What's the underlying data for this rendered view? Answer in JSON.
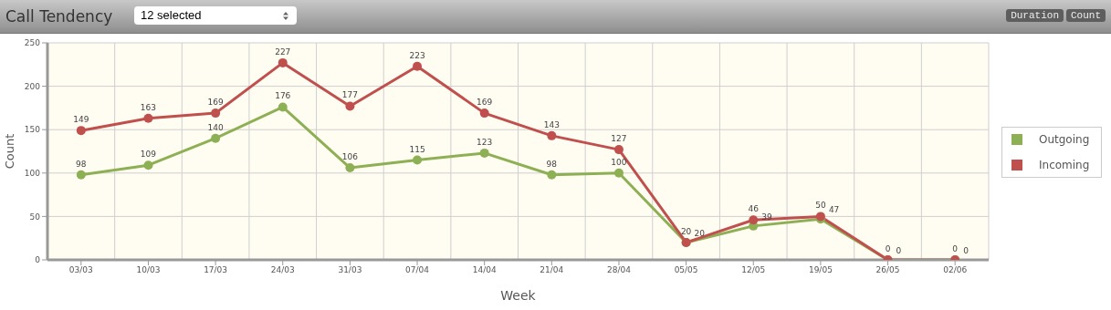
{
  "chart_data": {
    "type": "line",
    "title": "Call Tendency",
    "xlabel": "Week",
    "ylabel": "Count",
    "annotations": [
      "12 selected",
      "Duration",
      "Count"
    ],
    "categories": [
      "03/03",
      "10/03",
      "17/03",
      "24/03",
      "31/03",
      "07/04",
      "14/04",
      "21/04",
      "28/04",
      "05/05",
      "12/05",
      "19/05",
      "26/05",
      "02/06"
    ],
    "series": [
      {
        "name": "Outgoing",
        "color": "#8eb055",
        "values": [
          98,
          109,
          140,
          176,
          106,
          115,
          123,
          98,
          100,
          20,
          39,
          47,
          0,
          0
        ]
      },
      {
        "name": "Incoming",
        "color": "#c0504d",
        "values": [
          149,
          163,
          169,
          227,
          177,
          223,
          169,
          143,
          127,
          20,
          46,
          50,
          0,
          0
        ]
      }
    ],
    "ylim": [
      0,
      250
    ],
    "yticks": [
      0,
      50,
      100,
      150,
      200,
      250
    ],
    "grid": true,
    "legend": "right",
    "marker": "circle",
    "line_style": "solid",
    "data_labels": true
  }
}
